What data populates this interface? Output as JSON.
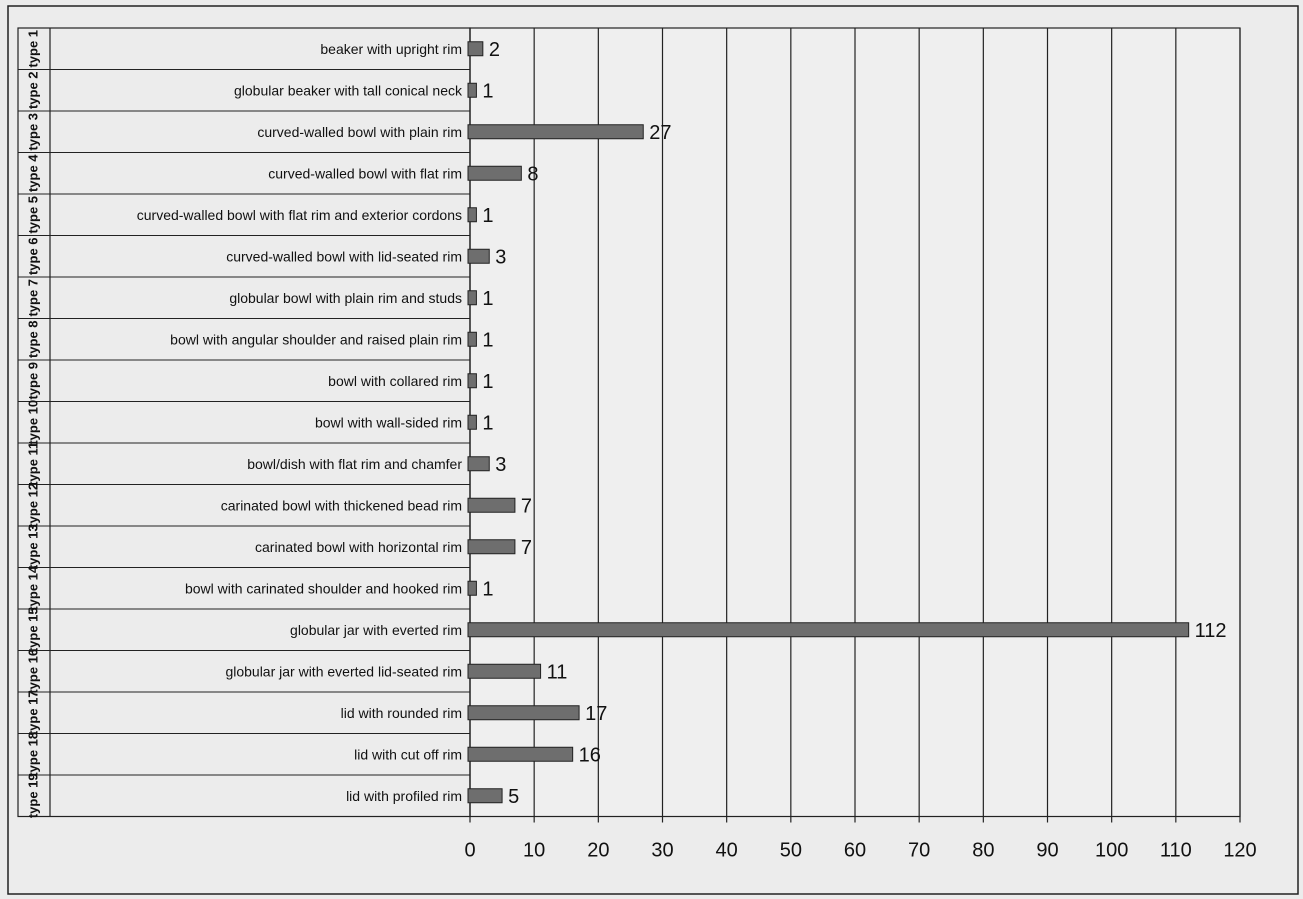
{
  "chart_data": {
    "type": "bar",
    "orientation": "horizontal",
    "type_labels": [
      "type 1",
      "type 2",
      "type 3",
      "type 4",
      "type 5",
      "type 6",
      "type 7",
      "type 8",
      "type 9",
      "type 10",
      "type 11",
      "type 12",
      "type 13",
      "type 14",
      "type 15",
      "type 16",
      "type 17",
      "type 18",
      "type 19"
    ],
    "categories": [
      "beaker with upright rim",
      "globular beaker with tall conical neck",
      "curved-walled bowl with plain rim",
      "curved-walled bowl with flat rim",
      "curved-walled bowl with flat rim and exterior cordons",
      "curved-walled bowl with lid-seated rim",
      "globular bowl with plain rim and studs",
      "bowl with angular shoulder and raised plain rim",
      "bowl with collared rim",
      "bowl with wall-sided rim",
      "bowl/dish with flat rim and chamfer",
      "carinated bowl with thickened bead rim",
      "carinated bowl with horizontal rim",
      "bowl with carinated shoulder and hooked rim",
      "globular jar with everted rim",
      "globular jar with everted lid-seated rim",
      "lid with rounded rim",
      "lid with cut off rim",
      "lid with profiled rim"
    ],
    "values": [
      2,
      1,
      27,
      8,
      1,
      3,
      1,
      1,
      1,
      1,
      3,
      7,
      7,
      1,
      112,
      11,
      17,
      16,
      5
    ],
    "xlim": [
      0,
      120
    ],
    "xticks": [
      0,
      10,
      20,
      30,
      40,
      50,
      60,
      70,
      80,
      90,
      100,
      110,
      120
    ],
    "grid": "vertical",
    "bar_color": "#6e6e6e",
    "title": "",
    "xlabel": "",
    "ylabel": ""
  }
}
